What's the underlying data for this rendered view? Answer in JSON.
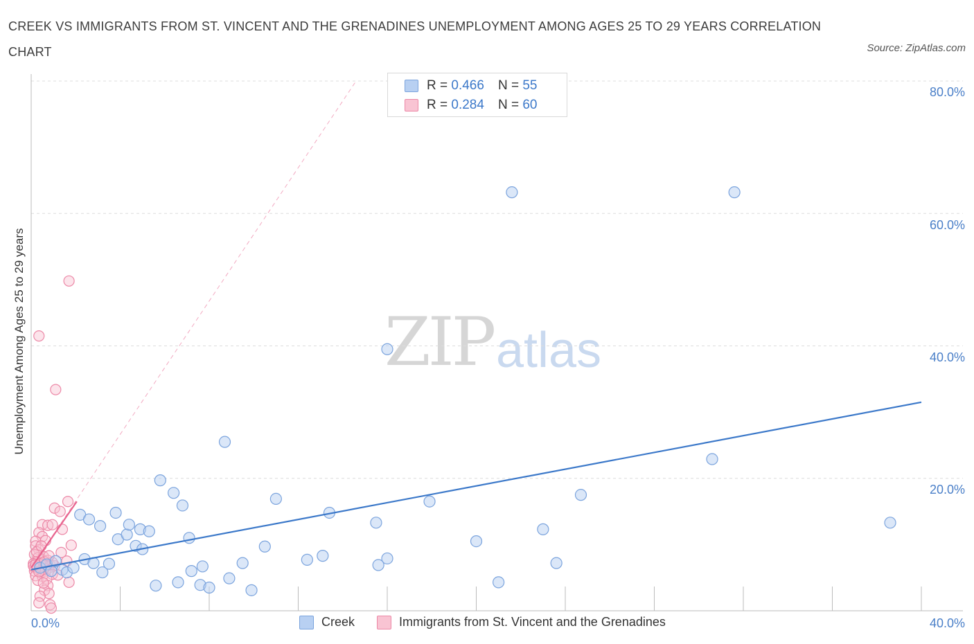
{
  "header": {
    "title": "CREEK VS IMMIGRANTS FROM ST. VINCENT AND THE GRENADINES UNEMPLOYMENT AMONG AGES 25 TO 29 YEARS CORRELATION CHART",
    "source": "Source: ZipAtlas.com"
  },
  "watermark": {
    "zip": "ZIP",
    "atlas": "atlas"
  },
  "legend": {
    "creek": {
      "r_label": "R =",
      "r_value": "0.466",
      "n_label": "N =",
      "n_value": "55"
    },
    "svg": {
      "r_label": "R =",
      "r_value": "0.284",
      "n_label": "N =",
      "n_value": "60"
    }
  },
  "colors": {
    "creek_fill": "#b8d0f2",
    "creek_stroke": "#7aa3dd",
    "creek_line": "#3b78c9",
    "svg_fill": "#f9c4d3",
    "svg_stroke": "#ec87a6",
    "svg_line": "#e8648f",
    "grid": "#dcdcdc",
    "axis_text": "#4a7fc8"
  },
  "chart_data": {
    "type": "scatter",
    "title": "CREEK VS IMMIGRANTS FROM ST. VINCENT AND THE GRENADINES UNEMPLOYMENT AMONG AGES 25 TO 29 YEARS CORRELATION CHART",
    "xlabel": "",
    "ylabel": "Unemployment Among Ages 25 to 29 years",
    "xlim": [
      0,
      40
    ],
    "ylim": [
      0,
      80
    ],
    "x_tick_labels": [
      "0.0%",
      "40.0%"
    ],
    "y_tick_labels": [
      "20.0%",
      "40.0%",
      "60.0%",
      "80.0%"
    ],
    "y_ticks": [
      20,
      40,
      60,
      80
    ],
    "series": [
      {
        "name": "Creek",
        "r": 0.466,
        "n": 55,
        "trend": {
          "x": [
            0,
            40
          ],
          "y": [
            6.2,
            31.5
          ]
        },
        "points": [
          [
            0.4,
            6.5
          ],
          [
            0.7,
            7.0
          ],
          [
            0.9,
            6.0
          ],
          [
            1.1,
            7.5
          ],
          [
            1.4,
            6.2
          ],
          [
            1.6,
            5.8
          ],
          [
            1.9,
            6.5
          ],
          [
            2.2,
            14.5
          ],
          [
            2.4,
            7.8
          ],
          [
            2.6,
            13.8
          ],
          [
            2.8,
            7.2
          ],
          [
            3.1,
            12.8
          ],
          [
            3.2,
            5.8
          ],
          [
            3.5,
            7.1
          ],
          [
            3.8,
            14.8
          ],
          [
            3.9,
            10.8
          ],
          [
            4.3,
            11.5
          ],
          [
            4.4,
            13.0
          ],
          [
            4.7,
            9.8
          ],
          [
            4.9,
            12.3
          ],
          [
            5.3,
            12.0
          ],
          [
            5.6,
            3.8
          ],
          [
            5.8,
            19.7
          ],
          [
            6.4,
            17.8
          ],
          [
            6.6,
            4.3
          ],
          [
            6.8,
            15.9
          ],
          [
            7.1,
            11.0
          ],
          [
            7.2,
            6.0
          ],
          [
            7.6,
            3.9
          ],
          [
            7.7,
            6.7
          ],
          [
            8.0,
            3.5
          ],
          [
            8.7,
            25.5
          ],
          [
            8.9,
            4.9
          ],
          [
            9.9,
            3.1
          ],
          [
            10.5,
            9.7
          ],
          [
            11.0,
            16.9
          ],
          [
            12.4,
            7.7
          ],
          [
            13.1,
            8.3
          ],
          [
            13.4,
            14.8
          ],
          [
            15.5,
            13.3
          ],
          [
            15.6,
            6.9
          ],
          [
            16.0,
            7.9
          ],
          [
            16.0,
            39.5
          ],
          [
            17.9,
            16.5
          ],
          [
            20.0,
            10.5
          ],
          [
            21.0,
            4.3
          ],
          [
            21.6,
            63.2
          ],
          [
            23.0,
            12.3
          ],
          [
            23.6,
            7.2
          ],
          [
            24.7,
            17.5
          ],
          [
            30.6,
            22.9
          ],
          [
            31.6,
            63.2
          ],
          [
            38.6,
            13.3
          ],
          [
            5.0,
            9.3
          ],
          [
            9.5,
            7.2
          ]
        ]
      },
      {
        "name": "Immigrants from St. Vincent and the Grenadines",
        "r": 0.284,
        "n": 60,
        "trend": {
          "x": [
            0,
            2.05
          ],
          "y": [
            6.5,
            16.5
          ]
        },
        "trend_extension": {
          "x": [
            0,
            14.6
          ],
          "y": [
            6.5,
            80
          ]
        },
        "points": [
          [
            1.7,
            49.8
          ],
          [
            0.35,
            41.5
          ],
          [
            1.1,
            33.4
          ],
          [
            1.65,
            16.5
          ],
          [
            1.05,
            15.5
          ],
          [
            1.3,
            15.0
          ],
          [
            0.5,
            13.0
          ],
          [
            0.75,
            12.9
          ],
          [
            0.95,
            13.0
          ],
          [
            1.4,
            12.3
          ],
          [
            0.35,
            11.8
          ],
          [
            0.5,
            11.2
          ],
          [
            0.2,
            10.5
          ],
          [
            0.65,
            10.6
          ],
          [
            0.2,
            9.8
          ],
          [
            1.8,
            9.9
          ],
          [
            0.35,
            9.2
          ],
          [
            0.15,
            8.5
          ],
          [
            1.35,
            8.8
          ],
          [
            0.3,
            8.0
          ],
          [
            0.5,
            7.7
          ],
          [
            0.55,
            8.2
          ],
          [
            0.25,
            7.4
          ],
          [
            0.75,
            7.6
          ],
          [
            1.6,
            7.5
          ],
          [
            0.1,
            7.1
          ],
          [
            0.4,
            7.1
          ],
          [
            0.6,
            6.8
          ],
          [
            0.85,
            6.9
          ],
          [
            0.15,
            6.5
          ],
          [
            0.3,
            6.4
          ],
          [
            0.55,
            6.3
          ],
          [
            0.8,
            6.5
          ],
          [
            1.05,
            6.8
          ],
          [
            0.15,
            6.0
          ],
          [
            0.45,
            5.8
          ],
          [
            0.65,
            6.0
          ],
          [
            0.95,
            5.5
          ],
          [
            0.2,
            5.3
          ],
          [
            0.5,
            5.2
          ],
          [
            0.3,
            4.6
          ],
          [
            0.7,
            4.8
          ],
          [
            1.7,
            4.3
          ],
          [
            0.75,
            3.8
          ],
          [
            0.6,
            3.1
          ],
          [
            0.8,
            2.6
          ],
          [
            0.4,
            2.2
          ],
          [
            0.35,
            1.2
          ],
          [
            0.85,
            0.9
          ],
          [
            0.9,
            0.4
          ],
          [
            1.2,
            5.4
          ],
          [
            0.95,
            7.3
          ],
          [
            0.25,
            8.9
          ],
          [
            0.45,
            9.8
          ],
          [
            0.1,
            6.8
          ],
          [
            0.6,
            7.4
          ],
          [
            0.35,
            5.9
          ],
          [
            0.8,
            8.3
          ],
          [
            0.55,
            4.2
          ],
          [
            0.2,
            7.0
          ]
        ]
      }
    ],
    "legend_placement": "top-center and bottom"
  },
  "axes": {
    "ylabel": "Unemployment Among Ages 25 to 29 years",
    "y_ticks": [
      "80.0%",
      "60.0%",
      "40.0%",
      "20.0%"
    ],
    "x_left": "0.0%",
    "x_right": "40.0%"
  },
  "bottom_legend": {
    "creek": "Creek",
    "svg": "Immigrants from St. Vincent and the Grenadines"
  }
}
